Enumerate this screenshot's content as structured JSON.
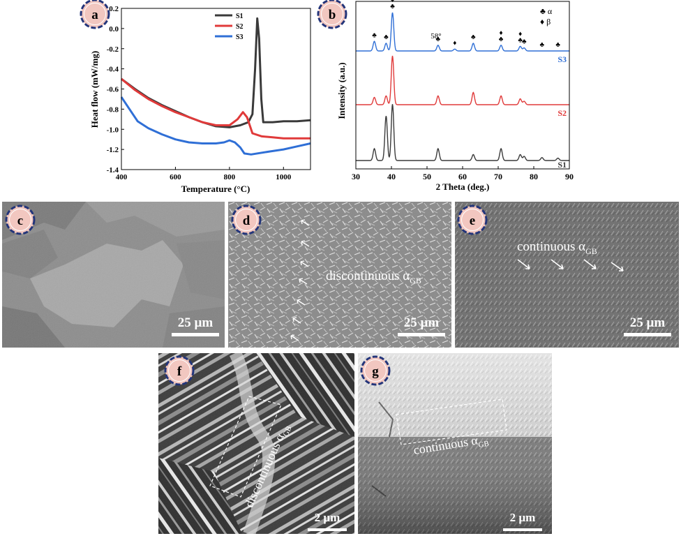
{
  "panels": {
    "a": {
      "label": "a"
    },
    "b": {
      "label": "b"
    },
    "c": {
      "label": "c",
      "scale": "25 µm"
    },
    "d": {
      "label": "d",
      "scale": "25 µm",
      "annotation": "discontinuous α",
      "annotation_sub": "GB"
    },
    "e": {
      "label": "e",
      "scale": "25 µm",
      "annotation": "continuous α",
      "annotation_sub": "GB"
    },
    "f": {
      "label": "f",
      "scale": "2 µm",
      "annotation": "discontinuous α",
      "annotation_sub": "GB"
    },
    "g": {
      "label": "g",
      "scale": "2 µm",
      "annotation": "continuous α",
      "annotation_sub": "GB"
    }
  },
  "chart_data": [
    {
      "type": "line",
      "xlabel": "Temperature (°C)",
      "ylabel": "Heat flow (mW/mg)",
      "xlim": [
        400,
        1100
      ],
      "ylim": [
        -1.4,
        0.2
      ],
      "xticks": [
        400,
        600,
        800,
        1000
      ],
      "yticks": [
        "0.2",
        "0.0",
        "-0.2",
        "-0.4",
        "-0.6",
        "-0.8",
        "-1.0",
        "-1.2",
        "-1.4"
      ],
      "legend_position": "top-right",
      "series": [
        {
          "name": "S1",
          "color": "#3a3a3a",
          "points": [
            [
              400,
              -0.5
            ],
            [
              450,
              -0.6
            ],
            [
              500,
              -0.69
            ],
            [
              550,
              -0.76
            ],
            [
              600,
              -0.82
            ],
            [
              650,
              -0.88
            ],
            [
              700,
              -0.93
            ],
            [
              750,
              -0.97
            ],
            [
              800,
              -0.98
            ],
            [
              840,
              -0.96
            ],
            [
              870,
              -0.93
            ],
            [
              885,
              -0.85
            ],
            [
              895,
              -0.4
            ],
            [
              903,
              0.1
            ],
            [
              910,
              -0.1
            ],
            [
              918,
              -0.7
            ],
            [
              925,
              -0.93
            ],
            [
              960,
              -0.93
            ],
            [
              1000,
              -0.92
            ],
            [
              1050,
              -0.92
            ],
            [
              1100,
              -0.91
            ]
          ]
        },
        {
          "name": "S2",
          "color": "#e03a3a",
          "points": [
            [
              400,
              -0.5
            ],
            [
              450,
              -0.61
            ],
            [
              500,
              -0.7
            ],
            [
              550,
              -0.77
            ],
            [
              600,
              -0.83
            ],
            [
              650,
              -0.88
            ],
            [
              700,
              -0.93
            ],
            [
              750,
              -0.96
            ],
            [
              800,
              -0.96
            ],
            [
              830,
              -0.9
            ],
            [
              850,
              -0.83
            ],
            [
              865,
              -0.88
            ],
            [
              885,
              -1.04
            ],
            [
              920,
              -1.07
            ],
            [
              960,
              -1.08
            ],
            [
              1000,
              -1.09
            ],
            [
              1050,
              -1.09
            ],
            [
              1100,
              -1.09
            ]
          ]
        },
        {
          "name": "S3",
          "color": "#2f6fd6",
          "points": [
            [
              400,
              -0.68
            ],
            [
              430,
              -0.8
            ],
            [
              460,
              -0.92
            ],
            [
              500,
              -0.99
            ],
            [
              550,
              -1.05
            ],
            [
              600,
              -1.1
            ],
            [
              650,
              -1.13
            ],
            [
              700,
              -1.14
            ],
            [
              750,
              -1.14
            ],
            [
              780,
              -1.13
            ],
            [
              800,
              -1.11
            ],
            [
              820,
              -1.13
            ],
            [
              840,
              -1.18
            ],
            [
              855,
              -1.24
            ],
            [
              880,
              -1.25
            ],
            [
              950,
              -1.22
            ],
            [
              1000,
              -1.2
            ],
            [
              1050,
              -1.17
            ],
            [
              1100,
              -1.14
            ]
          ]
        }
      ]
    },
    {
      "type": "line",
      "xlabel": "2 Theta (deg.)",
      "ylabel": "Intensity (a.u.)",
      "xlim": [
        30,
        90
      ],
      "xticks": [
        30,
        40,
        50,
        60,
        70,
        80,
        90
      ],
      "legend": [
        {
          "symbol": "♣",
          "name": "α"
        },
        {
          "symbol": "♦",
          "name": "β"
        }
      ],
      "annotation": "58°",
      "series": [
        {
          "name": "S3",
          "color": "#2f6fd6",
          "peaks": [
            [
              35.2,
              0.25
            ],
            [
              38.5,
              0.2
            ],
            [
              40.3,
              1.0
            ],
            [
              53.1,
              0.15
            ],
            [
              57.8,
              0.05
            ],
            [
              63.0,
              0.2
            ],
            [
              70.8,
              0.15
            ],
            [
              76.2,
              0.12
            ],
            [
              77.3,
              0.08
            ]
          ]
        },
        {
          "name": "S2",
          "color": "#e03a3a",
          "peaks": [
            [
              35.2,
              0.15
            ],
            [
              38.5,
              0.18
            ],
            [
              40.3,
              1.0
            ],
            [
              53.1,
              0.18
            ],
            [
              63.0,
              0.25
            ],
            [
              70.8,
              0.18
            ],
            [
              76.2,
              0.12
            ],
            [
              77.3,
              0.07
            ]
          ]
        },
        {
          "name": "S1",
          "color": "#3a3a3a",
          "peaks": [
            [
              35.2,
              0.2
            ],
            [
              38.5,
              0.75
            ],
            [
              40.3,
              0.95
            ],
            [
              53.1,
              0.2
            ],
            [
              63.0,
              0.1
            ],
            [
              70.8,
              0.2
            ],
            [
              76.2,
              0.1
            ],
            [
              77.3,
              0.07
            ],
            [
              82.3,
              0.05
            ],
            [
              86.8,
              0.04
            ]
          ]
        }
      ],
      "markers": [
        {
          "x": 35.2,
          "symbol": "♣"
        },
        {
          "x": 38.5,
          "symbol": "♣"
        },
        {
          "x": 40.3,
          "symbol": "♣♦"
        },
        {
          "x": 53.1,
          "symbol": "♣"
        },
        {
          "x": 57.8,
          "symbol": "♦"
        },
        {
          "x": 63.0,
          "symbol": "♣"
        },
        {
          "x": 70.8,
          "symbol": "♣♦"
        },
        {
          "x": 76.2,
          "symbol": "♣♦"
        },
        {
          "x": 77.3,
          "symbol": "♣"
        },
        {
          "x": 82.3,
          "symbol": "♣"
        },
        {
          "x": 86.8,
          "symbol": "♣"
        }
      ]
    }
  ]
}
